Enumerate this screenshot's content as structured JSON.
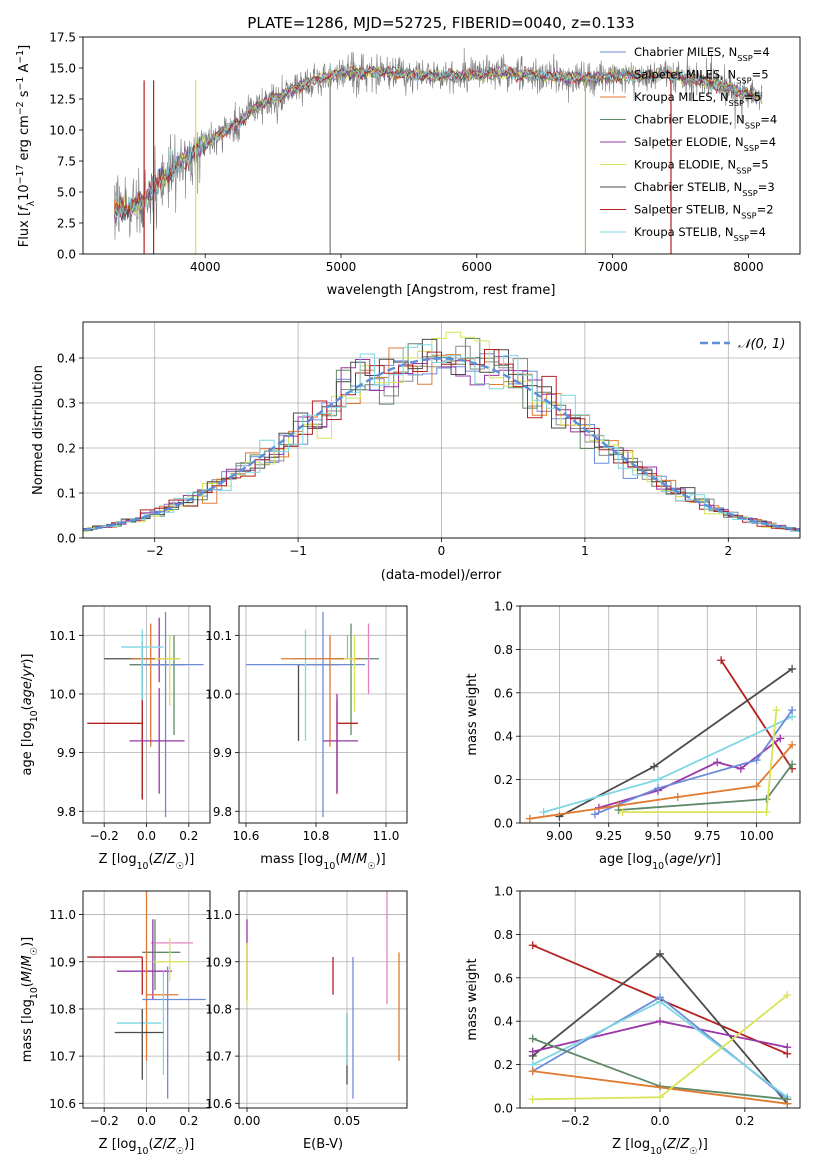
{
  "figure": {
    "title": "PLATE=1286, MJD=52725, FIBERID=0040, z=0.133"
  },
  "chart_data": [
    {
      "id": "spectrum",
      "type": "line",
      "title": "PLATE=1286, MJD=52725, FIBERID=0040, z=0.133",
      "xlabel": "wavelength [Angstrom, rest frame]",
      "ylabel": "Flux [fλ10⁻¹⁷ erg cm⁻² s⁻¹ A⁻¹]",
      "xlim": [
        3100,
        8380
      ],
      "ylim": [
        0,
        17.5
      ],
      "xticks": [
        4000,
        5000,
        6000,
        7000,
        8000
      ],
      "yticks": [
        0.0,
        2.5,
        5.0,
        7.5,
        10.0,
        12.5,
        15.0,
        17.5
      ],
      "grid": false,
      "legend_position": "right",
      "continuum": {
        "x": [
          3330,
          3450,
          3550,
          3650,
          3750,
          3850,
          3950,
          4050,
          4150,
          4250,
          4350,
          4450,
          4550,
          4650,
          4750,
          4850,
          5000,
          5200,
          5400,
          5600,
          5800,
          6000,
          6200,
          6400,
          6600,
          6800,
          7000,
          7200,
          7400,
          7600,
          7800,
          8000,
          8100
        ],
        "y": [
          3.4,
          3.7,
          4.5,
          5.6,
          6.7,
          7.6,
          8.5,
          9.2,
          10.0,
          10.6,
          11.7,
          12.3,
          12.8,
          13.3,
          13.8,
          14.2,
          14.6,
          14.7,
          14.6,
          14.4,
          14.4,
          14.5,
          14.6,
          14.4,
          14.3,
          14.2,
          14.3,
          14.4,
          14.5,
          14.1,
          13.6,
          12.9,
          12.6
        ]
      },
      "series": [
        {
          "name": "Chabrier MILES, N",
          "sub": "SSP",
          "suffix": "=4",
          "color": "#6d8cd7"
        },
        {
          "name": "Salpeter MILES, N",
          "sub": "SSP",
          "suffix": "=5",
          "color": "#8b8b8b"
        },
        {
          "name": "Kroupa MILES, N",
          "sub": "SSP",
          "suffix": "=5",
          "color": "#e07a30"
        },
        {
          "name": "Chabrier ELODIE, N",
          "sub": "SSP",
          "suffix": "=4",
          "color": "#5f8a68"
        },
        {
          "name": "Salpeter ELODIE, N",
          "sub": "SSP",
          "suffix": "=4",
          "color": "#9a36a8"
        },
        {
          "name": "Kroupa ELODIE, N",
          "sub": "SSP",
          "suffix": "=5",
          "color": "#d8e455"
        },
        {
          "name": "Chabrier STELIB, N",
          "sub": "SSP",
          "suffix": "=3",
          "color": "#4b4b4b"
        },
        {
          "name": "Salpeter STELIB, N",
          "sub": "SSP",
          "suffix": "=2",
          "color": "#b52020"
        },
        {
          "name": "Kroupa STELIB, N",
          "sub": "SSP",
          "suffix": "=4",
          "color": "#7fd6e4"
        }
      ]
    },
    {
      "id": "residuals",
      "type": "histogram",
      "xlabel": "(data-model)/error",
      "ylabel": "Normed distribution",
      "xlim": [
        -2.5,
        2.5
      ],
      "ylim": [
        0,
        0.48
      ],
      "xticks": [
        -2,
        -1,
        0,
        1,
        2
      ],
      "yticks": [
        0.0,
        0.1,
        0.2,
        0.3,
        0.4
      ],
      "grid": true,
      "legend": "𝒩(0, 1)",
      "legend_position": "top-right",
      "bin_width": 0.1,
      "reference_color": "#5b8fd9",
      "series_colors": [
        "#6d8cd7",
        "#8b8b8b",
        "#e07a30",
        "#5f8a68",
        "#9a36a8",
        "#d8e455",
        "#4b4b4b",
        "#b52020",
        "#7fd6e4"
      ]
    },
    {
      "id": "age-vs-z",
      "type": "errorbar",
      "xlabel": "Z [log₁₀(Z/Z☉)]",
      "ylabel": "age  [log₁₀(age/yr)]",
      "xlim": [
        -0.3,
        0.3
      ],
      "ylim": [
        9.78,
        10.15
      ],
      "xticks": [
        -0.2,
        0.0,
        0.2
      ],
      "yticks": [
        9.8,
        9.9,
        10.0,
        10.1
      ],
      "grid": true,
      "points": [
        {
          "x": 0.06,
          "xerr": [
            0.14,
            0.12
          ],
          "y": 10.05,
          "yerr": [
            0.03,
            0.08
          ],
          "color": "#9a36a8"
        },
        {
          "x": -0.02,
          "xerr": [
            0.18,
            0.06
          ],
          "y": 10.06,
          "yerr": [
            0.24,
            0.03
          ],
          "color": "#4b4b4b"
        },
        {
          "x": 0.13,
          "xerr": [
            0.21,
            0.06
          ],
          "y": 10.05,
          "yerr": [
            0.12,
            0.05
          ],
          "color": "#5f8a68"
        },
        {
          "x": 0.09,
          "xerr": [
            0.12,
            0.18
          ],
          "y": 10.05,
          "yerr": [
            0.26,
            0.09
          ],
          "color": "#6d8cd7"
        },
        {
          "x": 0.02,
          "xerr": [
            0.09,
            0.14
          ],
          "y": 10.06,
          "yerr": [
            0.15,
            0.06
          ],
          "color": "#e07a30"
        },
        {
          "x": 0.11,
          "xerr": [
            0.07,
            0.05
          ],
          "y": 10.06,
          "yerr": [
            0.08,
            0.04
          ],
          "color": "#d8e455"
        },
        {
          "x": -0.02,
          "xerr": [
            0.1,
            0.1
          ],
          "y": 10.08,
          "yerr": [
            0.12,
            0.03
          ],
          "color": "#7fd6e4"
        },
        {
          "x": -0.02,
          "xerr": [
            0.26,
            0.0
          ],
          "y": 9.95,
          "yerr": [
            0.13,
            0.04
          ],
          "color": "#b52020"
        },
        {
          "x": 0.06,
          "xerr": [
            0.14,
            0.12
          ],
          "y": 9.92,
          "yerr": [
            0.09,
            0.09
          ],
          "color": "#9a36a8"
        }
      ]
    },
    {
      "id": "age-vs-mass",
      "type": "errorbar",
      "xlabel": "mass [log₁₀(M/M☉)]",
      "ylabel": "",
      "xlim": [
        10.58,
        11.06
      ],
      "ylim": [
        9.78,
        10.15
      ],
      "xticks": [
        10.6,
        10.8,
        11.0
      ],
      "yticks": [
        9.8,
        9.9,
        10.0,
        10.1
      ],
      "grid": true,
      "points": [
        {
          "x": 10.75,
          "xerr": [
            0.0,
            0.12
          ],
          "y": 10.05,
          "yerr": [
            0.13,
            0.0
          ],
          "color": "#4b4b4b"
        },
        {
          "x": 10.82,
          "xerr": [
            0.22,
            0.12
          ],
          "y": 10.05,
          "yerr": [
            0.26,
            0.09
          ],
          "color": "#6d8cd7"
        },
        {
          "x": 10.77,
          "xerr": [
            0.04,
            0.06
          ],
          "y": 10.06,
          "yerr": [
            0.14,
            0.05
          ],
          "color": "#7fd6e4"
        },
        {
          "x": 10.89,
          "xerr": [
            0.08,
            0.0
          ],
          "y": 10.06,
          "yerr": [
            0.0,
            0.04
          ],
          "color": "#b0b0b0"
        },
        {
          "x": 10.9,
          "xerr": [
            0.06,
            0.08
          ],
          "y": 10.06,
          "yerr": [
            0.13,
            0.06
          ],
          "color": "#5f8a68"
        },
        {
          "x": 10.84,
          "xerr": [
            0.14,
            0.09
          ],
          "y": 10.06,
          "yerr": [
            0.15,
            0.04
          ],
          "color": "#e07a30"
        },
        {
          "x": 10.91,
          "xerr": [
            0.03,
            0.0
          ],
          "y": 10.06,
          "yerr": [
            0.09,
            0.04
          ],
          "color": "#d8e455"
        },
        {
          "x": 10.95,
          "xerr": [
            0.0,
            0.0
          ],
          "y": 10.05,
          "yerr": [
            0.05,
            0.07
          ],
          "color": "#e583c2"
        },
        {
          "x": 10.86,
          "xerr": [
            0.0,
            0.06
          ],
          "y": 9.95,
          "yerr": [
            0.12,
            0.04
          ],
          "color": "#b52020"
        },
        {
          "x": 10.86,
          "xerr": [
            0.04,
            0.06
          ],
          "y": 9.92,
          "yerr": [
            0.09,
            0.08
          ],
          "color": "#9a36a8"
        }
      ]
    },
    {
      "id": "weight-vs-age",
      "type": "line",
      "xlabel": "age  [log₁₀(age/yr)]",
      "ylabel": "mass weight",
      "xlim": [
        8.8,
        10.22
      ],
      "ylim": [
        0,
        1.0
      ],
      "xticks": [
        9.0,
        9.25,
        9.5,
        9.75,
        10.0
      ],
      "yticks": [
        0.0,
        0.2,
        0.4,
        0.6,
        0.8,
        1.0
      ],
      "grid": true,
      "series": [
        {
          "color": "#b52020",
          "x": [
            9.82,
            10.18
          ],
          "y": [
            0.75,
            0.25
          ]
        },
        {
          "color": "#4b4b4b",
          "x": [
            9.0,
            9.48,
            10.18
          ],
          "y": [
            0.03,
            0.26,
            0.71
          ]
        },
        {
          "color": "#7fd6e4",
          "x": [
            8.92,
            9.5,
            10.18
          ],
          "y": [
            0.05,
            0.2,
            0.49
          ]
        },
        {
          "color": "#9a36a8",
          "x": [
            9.2,
            9.5,
            9.8,
            9.92,
            10.12
          ],
          "y": [
            0.07,
            0.15,
            0.28,
            0.25,
            0.39
          ]
        },
        {
          "color": "#6d8cd7",
          "x": [
            9.18,
            9.5,
            10.0,
            10.18
          ],
          "y": [
            0.04,
            0.16,
            0.29,
            0.52
          ]
        },
        {
          "color": "#e07a30",
          "x": [
            8.85,
            9.3,
            9.6,
            10.0,
            10.18
          ],
          "y": [
            0.02,
            0.08,
            0.12,
            0.17,
            0.36
          ]
        },
        {
          "color": "#5f8a68",
          "x": [
            9.3,
            10.05,
            10.18
          ],
          "y": [
            0.06,
            0.11,
            0.27
          ]
        },
        {
          "color": "#d8e455",
          "x": [
            9.32,
            10.05,
            10.1
          ],
          "y": [
            0.05,
            0.05,
            0.52
          ]
        }
      ]
    },
    {
      "id": "mass-vs-z",
      "type": "errorbar",
      "xlabel": "Z [log₁₀(Z/Z☉)]",
      "ylabel": "mass [log₁₀(M/M☉)]",
      "xlim": [
        -0.3,
        0.3
      ],
      "ylim": [
        10.59,
        11.05
      ],
      "xticks": [
        -0.2,
        0.0,
        0.2
      ],
      "yticks": [
        10.6,
        10.7,
        10.8,
        10.9,
        11.0
      ],
      "grid": true,
      "points": [
        {
          "x": 0.04,
          "xerr": [
            0.06,
            0.12
          ],
          "y": 10.92,
          "yerr": [
            0.08,
            0.07
          ],
          "color": "#5f8a68"
        },
        {
          "x": 0.12,
          "xerr": [
            0.1,
            0.1
          ],
          "y": 10.94,
          "yerr": [
            0.0,
            0.0
          ],
          "color": "#e583c2"
        },
        {
          "x": -0.02,
          "xerr": [
            0.26,
            0.0
          ],
          "y": 10.91,
          "yerr": [
            0.08,
            0.0
          ],
          "color": "#b52020"
        },
        {
          "x": 0.03,
          "xerr": [
            0.17,
            0.09
          ],
          "y": 10.88,
          "yerr": [
            0.06,
            0.11
          ],
          "color": "#9a36a8"
        },
        {
          "x": 0.11,
          "xerr": [
            0.08,
            0.08
          ],
          "y": 10.9,
          "yerr": [
            0.04,
            0.05
          ],
          "color": "#d8e455"
        },
        {
          "x": 0.0,
          "xerr": [
            0.0,
            0.15
          ],
          "y": 10.83,
          "yerr": [
            0.14,
            0.3
          ],
          "color": "#e07a30"
        },
        {
          "x": 0.1,
          "xerr": [
            0.12,
            0.18
          ],
          "y": 10.82,
          "yerr": [
            0.21,
            0.07
          ],
          "color": "#6d8cd7"
        },
        {
          "x": -0.02,
          "xerr": [
            0.12,
            0.09
          ],
          "y": 10.77,
          "yerr": [
            0.0,
            0.0
          ],
          "color": "#7fd6e4"
        },
        {
          "x": 0.08,
          "xerr": [
            0.0,
            0.0
          ],
          "y": 10.77,
          "yerr": [
            0.11,
            0.11
          ],
          "color": "#7fd6e4"
        },
        {
          "x": -0.02,
          "xerr": [
            0.13,
            0.1
          ],
          "y": 10.75,
          "yerr": [
            0.1,
            0.05
          ],
          "color": "#4b4b4b"
        }
      ]
    },
    {
      "id": "mass-vs-ebv",
      "type": "errorbar",
      "xlabel": "E(B-V)",
      "ylabel": "",
      "xlim": [
        -0.004,
        0.08
      ],
      "ylim": [
        10.59,
        11.05
      ],
      "xticks": [
        0.0,
        0.05
      ],
      "yticks": [
        10.6,
        10.7,
        10.8,
        10.9,
        11.0
      ],
      "grid": true,
      "points": [
        {
          "x": 0.0,
          "y": 10.94,
          "yerr": [
            0.12,
            0.05
          ],
          "color": "#9a36a8"
        },
        {
          "x": 0.0,
          "y": 10.88,
          "yerr": [
            0.07,
            0.06
          ],
          "color": "#d8e455"
        },
        {
          "x": 0.043,
          "y": 10.87,
          "yerr": [
            0.04,
            0.04
          ],
          "color": "#b52020"
        },
        {
          "x": 0.05,
          "y": 10.74,
          "yerr": [
            0.1,
            0.05
          ],
          "color": "#4b4b4b"
        },
        {
          "x": 0.05,
          "y": 10.73,
          "yerr": [
            0.05,
            0.06
          ],
          "color": "#7fd6e4"
        },
        {
          "x": 0.053,
          "y": 10.76,
          "yerr": [
            0.15,
            0.15
          ],
          "color": "#6d8cd7"
        },
        {
          "x": 0.07,
          "y": 10.97,
          "yerr": [
            0.16,
            0.16
          ],
          "color": "#e583c2"
        },
        {
          "x": 0.076,
          "y": 10.8,
          "yerr": [
            0.11,
            0.12
          ],
          "color": "#e07a30"
        }
      ]
    },
    {
      "id": "weight-vs-z",
      "type": "line",
      "xlabel": "Z [log₁₀(Z/Z☉)]",
      "ylabel": "mass weight",
      "xlim": [
        -0.33,
        0.33
      ],
      "ylim": [
        0,
        1.0
      ],
      "xticks": [
        -0.2,
        0.0,
        0.2
      ],
      "yticks": [
        0.0,
        0.2,
        0.4,
        0.6,
        0.8,
        1.0
      ],
      "grid": true,
      "series": [
        {
          "color": "#b52020",
          "x": [
            -0.3,
            0.3
          ],
          "y": [
            0.75,
            0.25
          ]
        },
        {
          "color": "#4b4b4b",
          "x": [
            -0.3,
            0.0,
            0.3
          ],
          "y": [
            0.24,
            0.71,
            0.02
          ]
        },
        {
          "color": "#9a36a8",
          "x": [
            -0.3,
            0.0,
            0.3
          ],
          "y": [
            0.26,
            0.4,
            0.28
          ]
        },
        {
          "color": "#6d8cd7",
          "x": [
            -0.3,
            0.0,
            0.3
          ],
          "y": [
            0.17,
            0.51,
            0.04
          ]
        },
        {
          "color": "#7fd6e4",
          "x": [
            -0.3,
            0.0,
            0.3
          ],
          "y": [
            0.2,
            0.49,
            0.05
          ]
        },
        {
          "color": "#5f8a68",
          "x": [
            -0.3,
            0.0,
            0.3
          ],
          "y": [
            0.32,
            0.1,
            0.04
          ]
        },
        {
          "color": "#e07a30",
          "x": [
            -0.3,
            0.3
          ],
          "y": [
            0.17,
            0.02
          ]
        },
        {
          "color": "#d8e455",
          "x": [
            -0.3,
            0.0,
            0.3
          ],
          "y": [
            0.04,
            0.05,
            0.52
          ]
        }
      ]
    }
  ]
}
